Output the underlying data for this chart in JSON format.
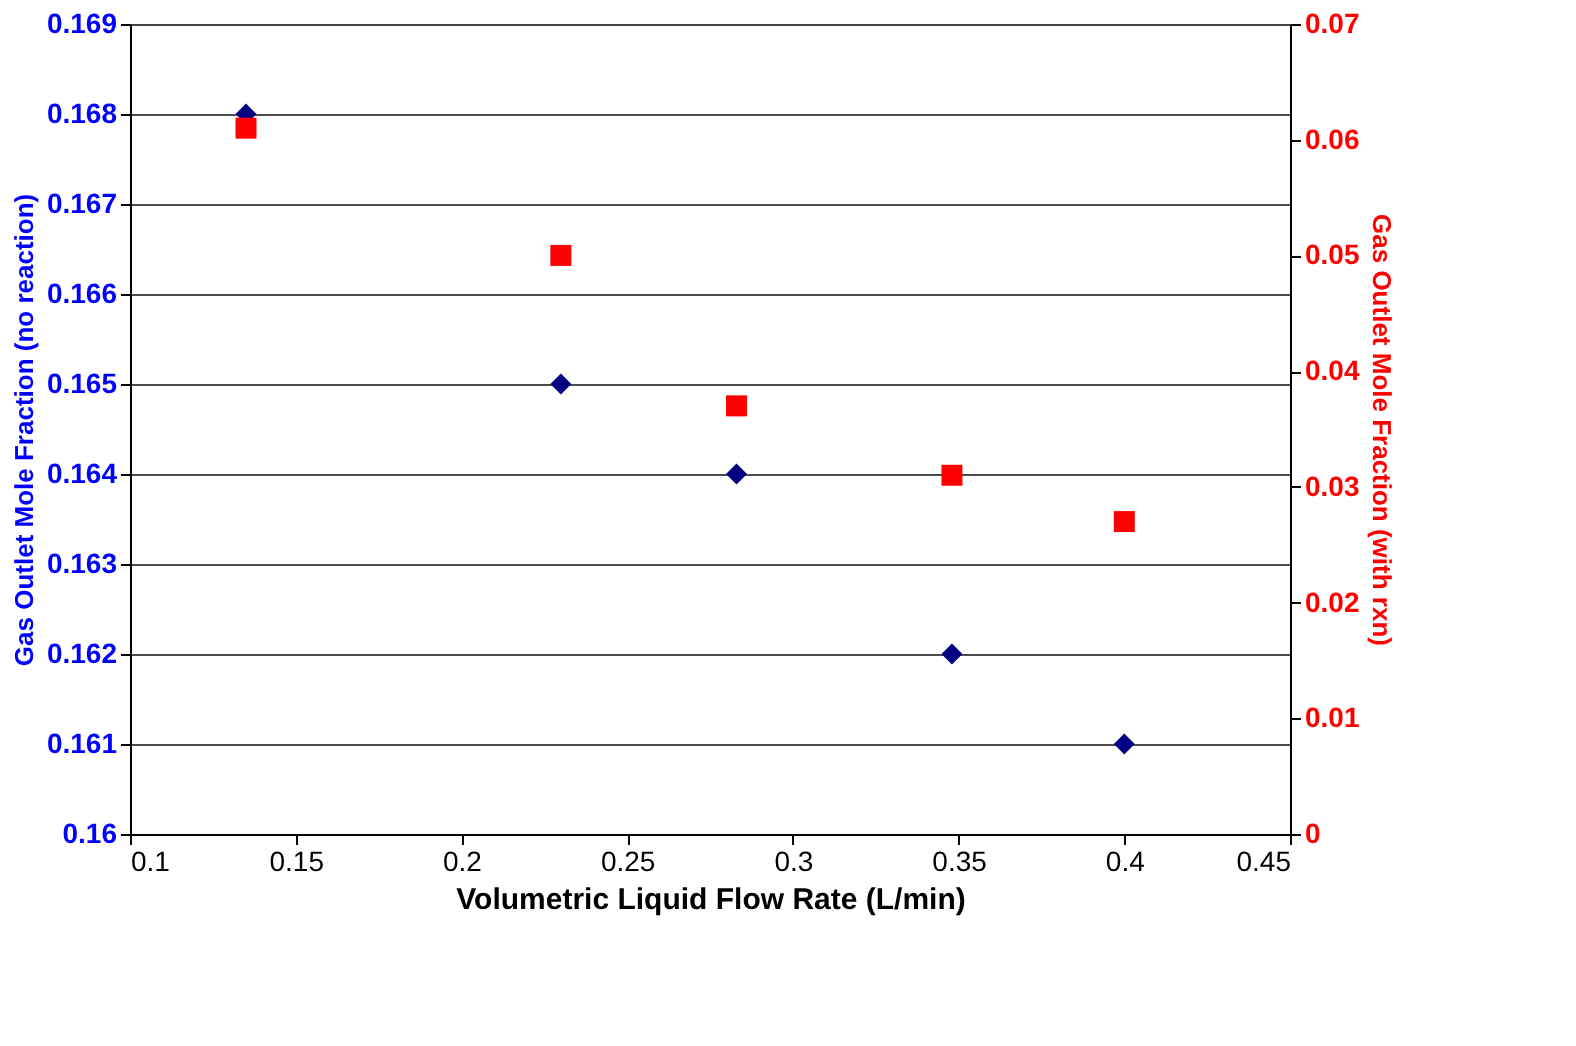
{
  "chart_data": {
    "type": "scatter",
    "xlabel": "Volumetric Liquid Flow Rate (L/min)",
    "ylabel": "Gas Outlet Mole Fraction (no reaction)",
    "y2label": "Gas Outlet Mole Fraction (with rxn)",
    "x": [
      0.135,
      0.23,
      0.283,
      0.348,
      0.4
    ],
    "series": [
      {
        "color": "#000080",
        "marker": "diamond",
        "values": [
          0.168,
          0.165,
          0.164,
          0.162,
          0.161
        ]
      },
      {
        "color": "#ff0000",
        "marker": "square",
        "axis": "y2",
        "values": [
          0.061,
          0.05,
          0.037,
          0.031,
          0.027
        ]
      }
    ],
    "xlim": [
      0.1,
      0.45
    ],
    "xticks": [
      0.1,
      0.15,
      0.2,
      0.25,
      0.3,
      0.35,
      0.4,
      0.45
    ],
    "ylim": [
      0.16,
      0.169
    ],
    "yticks": [
      0.16,
      0.161,
      0.162,
      0.163,
      0.164,
      0.165,
      0.166,
      0.167,
      0.168,
      0.169
    ],
    "y2lim": [
      0,
      0.07
    ],
    "y2ticks": [
      0,
      0.01,
      0.02,
      0.03,
      0.04,
      0.05,
      0.06,
      0.07
    ],
    "grid": "y"
  }
}
